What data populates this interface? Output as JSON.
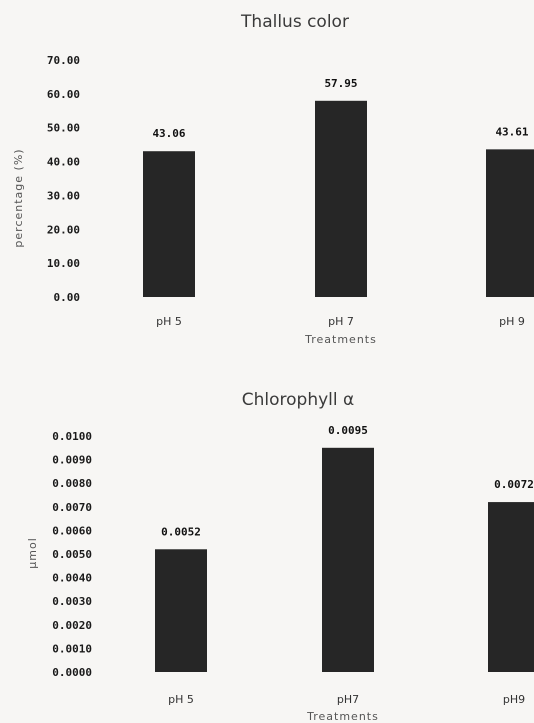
{
  "chart_data": [
    {
      "type": "bar",
      "title": "Thallus color",
      "xlabel": "Treatments",
      "ylabel": "percentage (%)",
      "categories": [
        "pH 5",
        "pH 7",
        "pH 9"
      ],
      "values": [
        43.06,
        57.95,
        43.61
      ],
      "data_labels": [
        "43.06",
        "57.95",
        "43.61"
      ],
      "ylim": [
        0,
        70
      ],
      "yticks": [
        "70.00",
        "60.00",
        "50.00",
        "40.00",
        "30.00",
        "20.00",
        "10.00",
        "0.00"
      ],
      "grid": false,
      "legend": "none",
      "bar_color": "#262626"
    },
    {
      "type": "bar",
      "title": "Chlorophyll α",
      "xlabel": "Treatments",
      "ylabel": "μmol",
      "categories": [
        "pH 5",
        "pH7",
        "pH9"
      ],
      "values": [
        0.0052,
        0.0095,
        0.0072
      ],
      "data_labels": [
        "0.0052",
        "0.0095",
        "0.0072"
      ],
      "ylim": [
        0,
        0.01
      ],
      "yticks": [
        "0.0100",
        "0.0090",
        "0.0080",
        "0.0070",
        "0.0060",
        "0.0050",
        "0.0040",
        "0.0030",
        "0.0020",
        "0.0010",
        "0.0000"
      ],
      "grid": false,
      "legend": "none",
      "bar_color": "#262626"
    }
  ]
}
